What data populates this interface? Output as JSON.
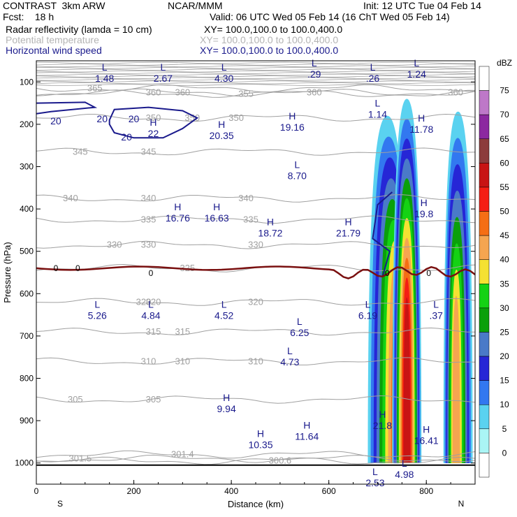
{
  "header": {
    "left1": "CONTRAST  3km ARW",
    "center1": "NCAR/MMM",
    "right1": "Init: 12 UTC Tue 04 Feb 14",
    "left2": "Fcst:    18 h",
    "right2": "Valid: 06 UTC Wed 05 Feb 14 (16 ChT Wed 05 Feb 14)",
    "field1": "Radar reflectivity (lamda = 10 cm)",
    "xy1": "XY= 100.0,100.0 to 100.0,400.0",
    "field2": "Potential temperature",
    "xy2": "XY= 100.0,100.0 to 100.0,400.0",
    "field3": "Horizontal wind speed",
    "xy3": "XY= 100.0,100.0 to 100.0,400.0"
  },
  "colors": {
    "wind": "#1a1a8c",
    "theta": "#a0a0a0",
    "zero_line": "#7a1010"
  },
  "chart_data": {
    "type": "heatmap",
    "xlabel": "Distance (km)",
    "ylabel": "Pressure (hPa)",
    "xlim": [
      0,
      900
    ],
    "ylim": [
      1050,
      50
    ],
    "x_ticks": [
      0,
      200,
      400,
      600,
      800
    ],
    "y_ticks": [
      100,
      200,
      300,
      400,
      500,
      600,
      700,
      800,
      900,
      1000
    ],
    "x_end_labels": {
      "left": "S",
      "right": "N"
    },
    "colorbar": {
      "unit": "dBZ",
      "levels": [
        0,
        5,
        10,
        15,
        20,
        25,
        30,
        35,
        40,
        45,
        50,
        55,
        60,
        65,
        70,
        75
      ],
      "colors": [
        "#ffffff",
        "#aaf5f5",
        "#5ad2f0",
        "#3278f0",
        "#2626d6",
        "#4a7ac8",
        "#0aa00a",
        "#14d214",
        "#f5e132",
        "#f5a550",
        "#f56e14",
        "#f51e14",
        "#c81414",
        "#8c3c3c",
        "#8c28a0",
        "#be78c8",
        "#ffffff"
      ]
    },
    "reflectivity_cells": [
      {
        "x": [
          680,
          760
        ],
        "top": 180,
        "base": 1000,
        "peak_x": 750,
        "peak_dbz": 50
      },
      {
        "x": [
          730,
          790
        ],
        "top": 140,
        "base": 1000,
        "peak_x": 760,
        "peak_dbz": 55
      },
      {
        "x": [
          835,
          895
        ],
        "top": 170,
        "base": 1000,
        "peak_x": 860,
        "peak_dbz": 40
      }
    ],
    "theta_contours": [
      {
        "level": "365",
        "p": 115,
        "label_x": [
          120
        ]
      },
      {
        "level": "360",
        "p": 125,
        "label_x": [
          240,
          300,
          570,
          860
        ]
      },
      {
        "level": "355",
        "p": 128,
        "label_x": [
          430
        ]
      },
      {
        "level": "350",
        "p": 185,
        "label_x": [
          240,
          320,
          410
        ]
      },
      {
        "level": "345",
        "p": 265,
        "label_x": [
          90,
          230
        ]
      },
      {
        "level": "340",
        "p": 375,
        "label_x": [
          70,
          230,
          430
        ]
      },
      {
        "level": "335",
        "p": 425,
        "label_x": [
          230,
          440
        ]
      },
      {
        "level": "330",
        "p": 485,
        "label_x": [
          160,
          230,
          450
        ]
      },
      {
        "level": "325",
        "p": 540,
        "label_x": [
          310
        ]
      },
      {
        "level": "320",
        "p": 620,
        "label_x": [
          220,
          240,
          450
        ]
      },
      {
        "level": "315",
        "p": 690,
        "label_x": [
          240,
          300
        ]
      },
      {
        "level": "310",
        "p": 760,
        "label_x": [
          230,
          300,
          450
        ]
      },
      {
        "level": "305",
        "p": 850,
        "label_x": [
          80,
          240
        ]
      },
      {
        "level": "301.5",
        "p": 990,
        "label_x": [
          90
        ]
      },
      {
        "level": "301.4",
        "p": 980,
        "label_x": [
          300
        ]
      },
      {
        "level": "300.6",
        "p": 995,
        "label_x": [
          500
        ]
      }
    ],
    "wind_labels": [
      {
        "text": "20",
        "x": 40,
        "p": 192
      },
      {
        "text": "20",
        "x": 135,
        "p": 187
      },
      {
        "text": "20",
        "x": 200,
        "p": 187
      },
      {
        "text": "20",
        "x": 185,
        "p": 230
      }
    ],
    "extrema": [
      {
        "type": "L",
        "value": "1.48",
        "x": 140,
        "p": 80
      },
      {
        "type": "L",
        "value": "2.67",
        "x": 260,
        "p": 80
      },
      {
        "type": "L",
        "value": "4.30",
        "x": 385,
        "p": 80
      },
      {
        "type": "L",
        "value": ".29",
        "x": 570,
        "p": 70
      },
      {
        "type": "L",
        "value": ".26",
        "x": 690,
        "p": 80
      },
      {
        "type": "L",
        "value": "1.24",
        "x": 780,
        "p": 70
      },
      {
        "type": "L",
        "value": "1.14",
        "x": 700,
        "p": 165
      },
      {
        "type": "H",
        "value": "11.78",
        "x": 790,
        "p": 200
      },
      {
        "type": "H",
        "value": "22",
        "x": 240,
        "p": 210
      },
      {
        "type": "H",
        "value": "20.35",
        "x": 380,
        "p": 215
      },
      {
        "type": "H",
        "value": "19.16",
        "x": 525,
        "p": 195
      },
      {
        "type": "L",
        "value": "8.70",
        "x": 535,
        "p": 310
      },
      {
        "type": "H",
        "value": "16.76",
        "x": 290,
        "p": 410
      },
      {
        "type": "H",
        "value": "16.63",
        "x": 370,
        "p": 410
      },
      {
        "type": "H",
        "value": "18.72",
        "x": 480,
        "p": 445
      },
      {
        "type": "H",
        "value": "21.79",
        "x": 640,
        "p": 445
      },
      {
        "type": "H",
        "value": "19.8",
        "x": 795,
        "p": 400
      },
      {
        "type": "L",
        "value": "5.26",
        "x": 125,
        "p": 640
      },
      {
        "type": "L",
        "value": "4.84",
        "x": 235,
        "p": 640
      },
      {
        "type": "L",
        "value": "4.52",
        "x": 385,
        "p": 640
      },
      {
        "type": "L",
        "value": "6.19",
        "x": 680,
        "p": 640
      },
      {
        "type": "L",
        "value": ".37",
        "x": 820,
        "p": 640
      },
      {
        "type": "L",
        "value": "6.25",
        "x": 540,
        "p": 680
      },
      {
        "type": "L",
        "value": "4.73",
        "x": 520,
        "p": 750
      },
      {
        "type": "H",
        "value": "9.94",
        "x": 390,
        "p": 860
      },
      {
        "type": "H",
        "value": "21.8",
        "x": 710,
        "p": 900
      },
      {
        "type": "H",
        "value": "11.64",
        "x": 555,
        "p": 925
      },
      {
        "type": "H",
        "value": "16.41",
        "x": 800,
        "p": 935
      },
      {
        "type": "H",
        "value": "10.35",
        "x": 460,
        "p": 945
      },
      {
        "type": "L",
        "value": "4.98",
        "x": 755,
        "p": 1015
      },
      {
        "type": "L",
        "value": "2.53",
        "x": 695,
        "p": 1035
      }
    ],
    "zero_line_labels": [
      {
        "text": "0",
        "x": 40,
        "p": 540
      },
      {
        "text": "0",
        "x": 85,
        "p": 540
      },
      {
        "text": "0",
        "x": 235,
        "p": 552
      },
      {
        "text": "0",
        "x": 720,
        "p": 552
      },
      {
        "text": "0",
        "x": 805,
        "p": 552
      }
    ]
  }
}
